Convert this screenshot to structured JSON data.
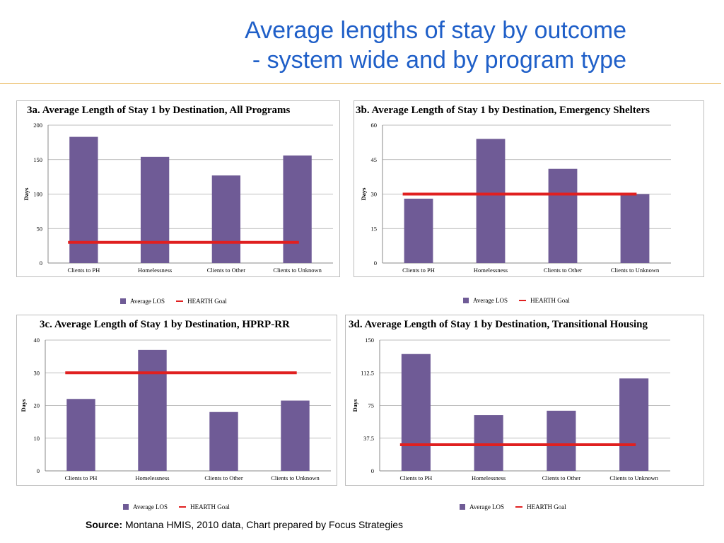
{
  "slide": {
    "title_line1": "Average lengths of stay by outcome",
    "title_line2": "- system wide and by program type"
  },
  "source": {
    "label": "Source:",
    "text": "Montana HMIS, 2010 data, Chart prepared by Focus Strategies"
  },
  "colors": {
    "bar": "#6f5b96",
    "goal": "#e02020",
    "title_blue": "#1f5fc8",
    "rule": "#e8b04a"
  },
  "chart_data": [
    {
      "type": "bar",
      "title": "3a. Average Length of Stay 1 by Destination, All Programs",
      "ylabel": "Days",
      "xlabel": "",
      "categories": [
        "Clients to PH",
        "Homelessness",
        "Clients to Other",
        "Clients to Unknown"
      ],
      "series": [
        {
          "name": "Average LOS",
          "values": [
            183,
            154,
            127,
            156
          ]
        }
      ],
      "goal": {
        "name": "HEARTH Goal",
        "value": 30
      },
      "ylim": [
        0,
        200
      ],
      "yticks": [
        0,
        50,
        100,
        150,
        200
      ],
      "ytick_labels": [
        "0",
        "50",
        "100",
        "150",
        "200"
      ],
      "grid": true,
      "legend": "bottom"
    },
    {
      "type": "bar",
      "title": "3b. Average Length of Stay 1 by Destination, Emergency Shelters",
      "ylabel": "Days",
      "xlabel": "",
      "categories": [
        "Clients to PH",
        "Homelessness",
        "Clients to Other",
        "Clients to Unknown"
      ],
      "series": [
        {
          "name": "Average LOS",
          "values": [
            28,
            54,
            41,
            30
          ]
        }
      ],
      "goal": {
        "name": "HEARTH Goal",
        "value": 30
      },
      "ylim": [
        0,
        60
      ],
      "yticks": [
        0,
        15,
        30,
        45,
        60
      ],
      "ytick_labels": [
        "0",
        "15",
        "30",
        "45",
        "60"
      ],
      "grid": true,
      "legend": "bottom"
    },
    {
      "type": "bar",
      "title": "3c. Average Length of Stay 1 by Destination, HPRP-RR",
      "ylabel": "Days",
      "xlabel": "",
      "categories": [
        "Clients to PH",
        "Homelessness",
        "Clients to Other",
        "Clients to Unknown"
      ],
      "series": [
        {
          "name": "Average LOS",
          "values": [
            22,
            37,
            18,
            21.5
          ]
        }
      ],
      "goal": {
        "name": "HEARTH Goal",
        "value": 30
      },
      "ylim": [
        0,
        40
      ],
      "yticks": [
        0,
        10,
        20,
        30,
        40
      ],
      "ytick_labels": [
        "0",
        "10",
        "20",
        "30",
        "40"
      ],
      "grid": true,
      "legend": "bottom"
    },
    {
      "type": "bar",
      "title": "3d. Average Length of Stay 1 by Destination, Transitional Housing",
      "ylabel": "Days",
      "xlabel": "",
      "categories": [
        "Clients to PH",
        "Homelessness",
        "Clients to Other",
        "Clients to Unknown"
      ],
      "series": [
        {
          "name": "Average LOS",
          "values": [
            134,
            64,
            69,
            106
          ]
        }
      ],
      "goal": {
        "name": "HEARTH Goal",
        "value": 30
      },
      "ylim": [
        0,
        150
      ],
      "yticks": [
        0,
        37.5,
        75,
        112.5,
        150
      ],
      "ytick_labels": [
        "0",
        "37.5",
        "75",
        "112.5",
        "150"
      ],
      "grid": true,
      "legend": "bottom"
    }
  ]
}
